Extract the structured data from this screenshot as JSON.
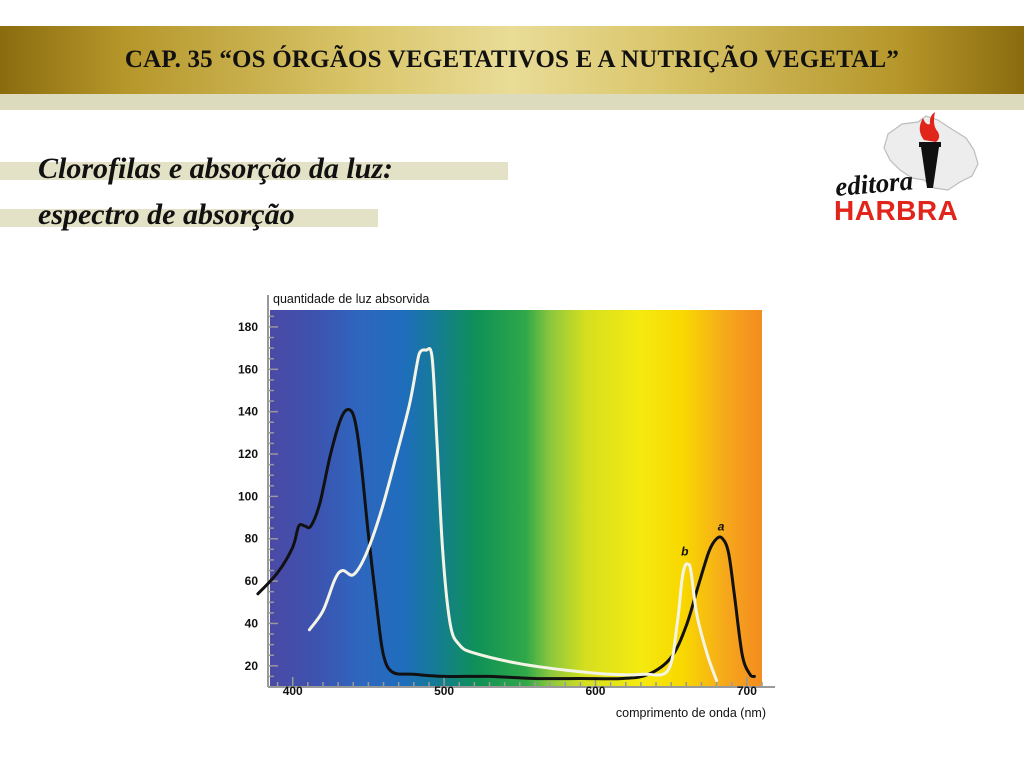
{
  "header": {
    "title": "CAP. 35 “OS ÓRGÃOS VEGETATIVOS E A NUTRIÇÃO VEGETAL”"
  },
  "slide": {
    "title_line1": "Clorofilas e absorção da luz:",
    "title_line2": "espectro de absorção"
  },
  "logo": {
    "script_text": "editora",
    "brand_text": "HARBRA",
    "brand_color": "#e1251b"
  },
  "chart_data": {
    "type": "line",
    "ylabel": "quantidade de luz absorvida",
    "xlabel": "comprimento de onda (nm)",
    "x_ticks": [
      400,
      500,
      600,
      700
    ],
    "y_ticks": [
      20,
      40,
      60,
      80,
      100,
      120,
      140,
      160,
      180
    ],
    "xlim": [
      385,
      710
    ],
    "ylim": [
      10,
      188
    ],
    "background": "visible light spectrum (violet → orange)",
    "series": [
      {
        "name": "a",
        "color": "#111111",
        "points": [
          [
            377,
            54
          ],
          [
            390,
            64
          ],
          [
            400,
            76
          ],
          [
            404,
            86
          ],
          [
            408,
            86
          ],
          [
            412,
            86
          ],
          [
            418,
            97
          ],
          [
            425,
            120
          ],
          [
            432,
            137
          ],
          [
            437,
            141
          ],
          [
            441,
            136
          ],
          [
            445,
            117
          ],
          [
            450,
            82
          ],
          [
            456,
            45
          ],
          [
            460,
            25
          ],
          [
            466,
            17
          ],
          [
            480,
            16
          ],
          [
            500,
            15
          ],
          [
            530,
            15
          ],
          [
            560,
            14
          ],
          [
            590,
            14
          ],
          [
            618,
            14
          ],
          [
            635,
            16
          ],
          [
            650,
            24
          ],
          [
            660,
            39
          ],
          [
            668,
            58
          ],
          [
            675,
            74
          ],
          [
            680,
            80
          ],
          [
            684,
            80
          ],
          [
            688,
            73
          ],
          [
            692,
            52
          ],
          [
            697,
            25
          ],
          [
            702,
            16
          ],
          [
            705,
            15
          ]
        ]
      },
      {
        "name": "b",
        "color": "#f4f4e6",
        "points": [
          [
            411,
            37
          ],
          [
            420,
            46
          ],
          [
            428,
            61
          ],
          [
            433,
            65
          ],
          [
            440,
            63
          ],
          [
            448,
            72
          ],
          [
            458,
            92
          ],
          [
            468,
            118
          ],
          [
            477,
            143
          ],
          [
            482,
            162
          ],
          [
            484,
            168
          ],
          [
            488,
            169
          ],
          [
            492,
            166
          ],
          [
            495,
            130
          ],
          [
            499,
            75
          ],
          [
            504,
            40
          ],
          [
            510,
            30
          ],
          [
            520,
            26
          ],
          [
            550,
            21
          ],
          [
            580,
            18
          ],
          [
            610,
            16
          ],
          [
            632,
            16
          ],
          [
            648,
            18
          ],
          [
            654,
            40
          ],
          [
            657,
            60
          ],
          [
            659,
            67
          ],
          [
            661,
            68
          ],
          [
            663,
            65
          ],
          [
            667,
            44
          ],
          [
            674,
            25
          ],
          [
            680,
            13
          ]
        ]
      }
    ],
    "annotations": [
      {
        "text": "a",
        "x": 683,
        "y": 84
      },
      {
        "text": "b",
        "x": 659,
        "y": 72
      }
    ]
  }
}
